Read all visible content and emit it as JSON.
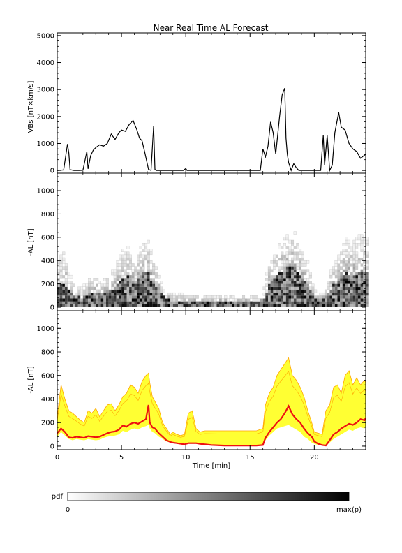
{
  "title": "Near Real Time AL Forecast",
  "colors": {
    "line": "#000000",
    "band": "#ffff33",
    "band_edge": "#ffa500",
    "flat_band": "#ffffaa",
    "median": "#ee1111"
  },
  "chart_data": [
    {
      "id": "vbs",
      "type": "line",
      "title": "",
      "xlabel": "",
      "ylabel": "VBs [nT×km/s]",
      "xlim": [
        0,
        24
      ],
      "ylim": [
        -100,
        5100
      ],
      "yticks": [
        0,
        1000,
        2000,
        3000,
        4000,
        5000
      ],
      "x": [
        0,
        0.5,
        0.8,
        0.9,
        1.0,
        1.3,
        1.7,
        2.0,
        2.3,
        2.4,
        2.5,
        2.6,
        2.8,
        3.0,
        3.3,
        3.6,
        3.9,
        4.2,
        4.5,
        4.8,
        5.0,
        5.3,
        5.6,
        5.9,
        6.2,
        6.4,
        6.6,
        6.8,
        7.1,
        7.3,
        7.5,
        7.6,
        7.7,
        7.8,
        8.0,
        9.8,
        10.0,
        10.1,
        15.5,
        15.8,
        16.0,
        16.2,
        16.4,
        16.6,
        16.8,
        17.0,
        17.3,
        17.5,
        17.7,
        17.8,
        17.9,
        18.0,
        18.2,
        18.4,
        18.6,
        18.8,
        19.0,
        19.2,
        20.5,
        20.7,
        20.8,
        21.0,
        21.2,
        21.4,
        21.6,
        21.9,
        22.1,
        22.4,
        22.7,
        23.0,
        23.3,
        23.6,
        24.0
      ],
      "y": [
        0,
        20,
        980,
        650,
        30,
        0,
        0,
        5,
        700,
        60,
        300,
        550,
        750,
        850,
        950,
        900,
        1000,
        1350,
        1150,
        1400,
        1500,
        1450,
        1700,
        1850,
        1500,
        1200,
        1100,
        700,
        40,
        0,
        1650,
        40,
        0,
        0,
        0,
        0,
        70,
        0,
        0,
        0,
        800,
        500,
        900,
        1800,
        1400,
        600,
        2000,
        2800,
        3050,
        1200,
        600,
        300,
        0,
        250,
        100,
        0,
        0,
        0,
        0,
        1300,
        200,
        1300,
        0,
        200,
        1400,
        2150,
        1600,
        1500,
        1000,
        800,
        700,
        450,
        600
      ],
      "lines": [
        {
          "x": [
            0,
            0.5,
            0.8,
            0.9,
            1.0,
            1.3,
            1.7,
            2.0,
            2.3,
            2.4,
            2.5,
            2.6,
            2.8,
            3.0,
            3.3,
            3.6,
            3.9,
            4.2,
            4.5,
            4.8,
            5.0,
            5.3,
            5.6,
            5.9,
            6.2,
            6.4,
            6.6,
            6.8,
            7.1,
            7.3,
            7.5,
            7.6,
            7.7,
            7.8,
            8.0,
            9.8,
            10.0,
            10.1,
            15.5,
            15.8,
            16.0,
            16.2,
            16.4,
            16.6,
            16.8,
            17.0,
            17.3,
            17.5,
            17.7,
            17.8,
            17.9,
            18.0,
            18.2,
            18.4,
            18.6,
            18.8,
            19.0,
            19.2,
            20.5,
            20.7,
            20.8,
            21.0,
            21.2,
            21.4,
            21.6,
            21.9,
            22.1,
            22.4,
            22.7,
            23.0,
            23.3,
            23.6,
            24.0
          ],
          "y": [
            0,
            20,
            980,
            650,
            30,
            0,
            0,
            5,
            700,
            60,
            300,
            550,
            750,
            850,
            950,
            900,
            1000,
            1350,
            1150,
            1400,
            1500,
            1450,
            1700,
            1850,
            1500,
            1200,
            1100,
            700,
            40,
            0,
            1650,
            40,
            0,
            0,
            0,
            0,
            70,
            0,
            0,
            0,
            800,
            500,
            900,
            1800,
            1400,
            600,
            2000,
            2800,
            3050,
            1200,
            600,
            300,
            0,
            250,
            100,
            0,
            0,
            0,
            0,
            1300,
            200,
            1300,
            0,
            200,
            1400,
            2150,
            1600,
            1500,
            1000,
            800,
            700,
            450,
            600
          ]
        }
      ]
    },
    {
      "id": "pdf",
      "type": "heatmap",
      "title": "",
      "xlabel": "",
      "ylabel": "-AL [nT]",
      "xlim": [
        0,
        24
      ],
      "ylim": [
        -30,
        1150
      ],
      "yticks": [
        0,
        200,
        400,
        600,
        800,
        1000
      ],
      "x_step": 0.2,
      "y_step": 25,
      "envelope_x": [
        0,
        0.5,
        1,
        1.5,
        2,
        2.5,
        3,
        3.5,
        4,
        4.5,
        5,
        5.5,
        6,
        6.5,
        7,
        7.5,
        8,
        8.5,
        9,
        9.5,
        10,
        10.5,
        11,
        11.5,
        12,
        12.5,
        13,
        13.5,
        14,
        14.5,
        15,
        15.5,
        16,
        16.5,
        17,
        17.5,
        18,
        18.5,
        19,
        19.5,
        20,
        20.5,
        21,
        21.5,
        22,
        22.5,
        23,
        23.5,
        24
      ],
      "envelope_top": [
        450,
        550,
        300,
        180,
        170,
        260,
        300,
        220,
        300,
        350,
        500,
        560,
        400,
        560,
        640,
        440,
        250,
        130,
        120,
        110,
        110,
        100,
        100,
        100,
        100,
        100,
        100,
        100,
        100,
        100,
        100,
        100,
        130,
        400,
        560,
        600,
        650,
        700,
        550,
        400,
        150,
        120,
        200,
        400,
        500,
        650,
        620,
        650,
        660
      ],
      "envelope_core": [
        150,
        200,
        120,
        80,
        70,
        100,
        120,
        90,
        120,
        160,
        220,
        260,
        200,
        260,
        300,
        210,
        120,
        60,
        40,
        30,
        30,
        30,
        30,
        30,
        30,
        30,
        30,
        30,
        30,
        30,
        30,
        30,
        40,
        180,
        260,
        300,
        350,
        330,
        250,
        180,
        60,
        40,
        80,
        180,
        220,
        280,
        260,
        280,
        290
      ],
      "scale_label": "pdf",
      "scale_min_label": "0",
      "scale_max_label": "max(p)"
    },
    {
      "id": "forecast",
      "type": "area",
      "title": "",
      "xlabel": "Time [min]",
      "ylabel": "-AL [nT]",
      "xlim": [
        0,
        24
      ],
      "ylim": [
        -30,
        1150
      ],
      "xticks": [
        0,
        5,
        10,
        15,
        20
      ],
      "yticks": [
        0,
        200,
        400,
        600,
        800,
        1000
      ],
      "x": [
        0,
        0.3,
        0.6,
        0.9,
        1.2,
        1.5,
        1.8,
        2.1,
        2.4,
        2.7,
        3.0,
        3.3,
        3.6,
        3.9,
        4.2,
        4.5,
        4.8,
        5.1,
        5.4,
        5.7,
        6.0,
        6.3,
        6.6,
        6.9,
        7.1,
        7.2,
        7.4,
        7.6,
        7.9,
        8.2,
        8.5,
        8.8,
        9.0,
        9.3,
        9.6,
        9.9,
        10.2,
        10.5,
        10.8,
        11.1,
        11.5,
        12,
        13,
        14,
        15,
        15.5,
        16.0,
        16.2,
        16.5,
        16.8,
        17.1,
        17.4,
        17.7,
        18.0,
        18.3,
        18.6,
        18.9,
        19.2,
        19.5,
        19.8,
        20.0,
        20.3,
        20.6,
        20.9,
        21.2,
        21.5,
        21.8,
        22.1,
        22.4,
        22.7,
        23.0,
        23.3,
        23.6,
        23.9,
        24.0
      ],
      "lower": [
        80,
        120,
        90,
        60,
        50,
        60,
        55,
        50,
        60,
        55,
        50,
        55,
        70,
        80,
        85,
        90,
        100,
        130,
        120,
        140,
        150,
        140,
        160,
        170,
        180,
        150,
        120,
        110,
        80,
        60,
        40,
        30,
        25,
        20,
        15,
        10,
        20,
        20,
        20,
        15,
        10,
        5,
        0,
        0,
        0,
        0,
        5,
        50,
        90,
        120,
        150,
        160,
        170,
        180,
        160,
        140,
        120,
        80,
        60,
        30,
        20,
        10,
        5,
        0,
        30,
        60,
        80,
        100,
        120,
        140,
        130,
        150,
        160,
        150,
        170
      ],
      "upper": [
        250,
        520,
        400,
        300,
        280,
        250,
        220,
        200,
        300,
        280,
        320,
        250,
        300,
        350,
        360,
        300,
        350,
        420,
        450,
        520,
        500,
        450,
        550,
        600,
        620,
        540,
        420,
        380,
        320,
        200,
        150,
        100,
        120,
        100,
        90,
        100,
        280,
        300,
        150,
        120,
        130,
        130,
        130,
        130,
        130,
        130,
        150,
        350,
        450,
        500,
        600,
        650,
        700,
        750,
        600,
        560,
        500,
        420,
        300,
        200,
        120,
        110,
        100,
        300,
        350,
        500,
        520,
        450,
        600,
        640,
        520,
        580,
        520,
        560,
        540
      ],
      "median": [
        110,
        150,
        120,
        75,
        70,
        80,
        75,
        70,
        85,
        80,
        75,
        80,
        95,
        110,
        120,
        125,
        140,
        175,
        165,
        190,
        200,
        190,
        210,
        230,
        350,
        200,
        160,
        150,
        110,
        80,
        50,
        35,
        30,
        25,
        20,
        15,
        25,
        25,
        25,
        20,
        15,
        10,
        5,
        5,
        5,
        5,
        10,
        70,
        120,
        160,
        200,
        230,
        280,
        340,
        270,
        230,
        200,
        150,
        110,
        80,
        40,
        20,
        10,
        5,
        50,
        100,
        120,
        150,
        170,
        190,
        180,
        200,
        230,
        220,
        240
      ],
      "flat_band_lower": 25,
      "flat_band_upper": 105,
      "flat_band_x": [
        11.5,
        15.8
      ]
    }
  ]
}
